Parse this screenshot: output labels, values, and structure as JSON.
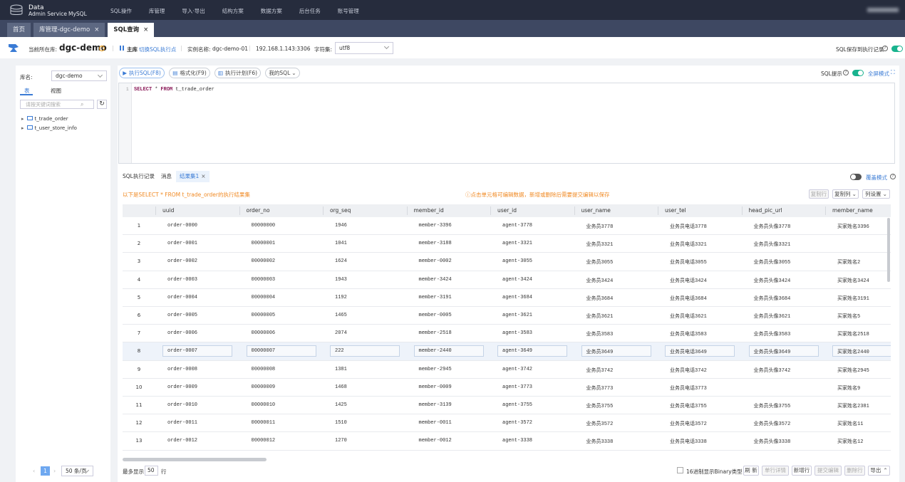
{
  "header": {
    "brand": "Data",
    "brand_sub": "Admin Service",
    "db_type": "MySQL",
    "nav": [
      "SQL操作",
      "库管理",
      "导入·导出",
      "结构方案",
      "数据方案",
      "后台任务",
      "账号管理"
    ]
  },
  "tabs": [
    {
      "label": "首页"
    },
    {
      "label": "库管理-dgc-demo"
    },
    {
      "label": "SQL查询",
      "active": true
    }
  ],
  "infobar": {
    "current_db_label": "当前所在库:",
    "current_db": "dgc-demo",
    "role": "主库",
    "switch_link": "切换SQL执行点",
    "instance_label": "实例名称:",
    "instance": "dgc-demo-01",
    "host": "192.168.1.143:3306",
    "charset_label": "字符集:",
    "charset": "utf8",
    "save_history_label": "SQL保存到执行记录"
  },
  "sidebar": {
    "db_label": "库名:",
    "db": "dgc-demo",
    "tabs": [
      "表",
      "视图"
    ],
    "search_placeholder": "请按关键词搜索",
    "tables": [
      "t_trade_order",
      "t_user_store_info"
    ],
    "page": "1",
    "page_size": "50 条/页"
  },
  "toolbar": {
    "buttons": [
      "执行SQL(F8)",
      "格式化(F9)",
      "执行计划(F6)",
      "我的SQL"
    ],
    "sql_hint": "SQL提示",
    "fullscreen": "全屏模式"
  },
  "editor": {
    "line": "1",
    "tokens": [
      {
        "text": "SELECT",
        "keyword": true
      },
      {
        "text": "*"
      },
      {
        "text": "FROM",
        "keyword": true
      },
      {
        "text": "t_trade_order"
      }
    ]
  },
  "result": {
    "tabs": [
      "SQL执行记录",
      "消息",
      "结果集1"
    ],
    "overwrite_mode": "覆盖模式",
    "summary": "以下是SELECT * FROM t_trade_order的执行结果集",
    "notice": "点击单元格可编辑数据，新增或删除后需要提交编辑以保存",
    "actions": [
      {
        "label": "复制行",
        "disabled": true
      },
      {
        "label": "复制列"
      },
      {
        "label": "列设置"
      }
    ]
  },
  "table": {
    "columns": [
      "uuid",
      "order_no",
      "org_seq",
      "member_id",
      "user_id",
      "user_name",
      "user_tel",
      "head_pic_url",
      "member_name"
    ],
    "selected_row": 7,
    "rows": [
      {
        "no": "1",
        "cells": [
          "order-0000",
          "00000000",
          "1946",
          "member-3396",
          "agent-3778",
          "业务员3778",
          "业务员电话3778",
          "业务员头像3778",
          "买家姓名3396"
        ]
      },
      {
        "no": "2",
        "cells": [
          "order-0001",
          "00000001",
          "1041",
          "member-3188",
          "agent-3321",
          "业务员3321",
          "业务员电话3321",
          "业务员头像3321",
          null
        ]
      },
      {
        "no": "3",
        "cells": [
          "order-0002",
          "00000002",
          "1624",
          "member-0002",
          "agent-3055",
          "业务员3055",
          "业务员电话3055",
          "业务员头像3055",
          "买家姓名2"
        ]
      },
      {
        "no": "4",
        "cells": [
          "order-0003",
          "00000003",
          "1943",
          "member-3424",
          "agent-3424",
          "业务员3424",
          "业务员电话3424",
          "业务员头像3424",
          "买家姓名3424"
        ]
      },
      {
        "no": "5",
        "cells": [
          "order-0004",
          "00000004",
          "1192",
          "member-3191",
          "agent-3684",
          "业务员3684",
          "业务员电话3684",
          "业务员头像3684",
          "买家姓名3191"
        ]
      },
      {
        "no": "6",
        "cells": [
          "order-0005",
          "00000005",
          "1465",
          "member-0005",
          "agent-3621",
          "业务员3621",
          "业务员电话3621",
          "业务员头像3621",
          "买家姓名5"
        ]
      },
      {
        "no": "7",
        "cells": [
          "order-0006",
          "00000006",
          "2074",
          "member-2518",
          "agent-3583",
          "业务员3583",
          "业务员电话3583",
          "业务员头像3583",
          "买家姓名2518"
        ]
      },
      {
        "no": "8",
        "cells": [
          "order-0007",
          "00000007",
          "222",
          "member-2440",
          "agent-3649",
          "业务员3649",
          "业务员电话3649",
          "业务员头像3649",
          "买家姓名2440"
        ]
      },
      {
        "no": "9",
        "cells": [
          "order-0008",
          "00000008",
          "1381",
          "member-2945",
          "agent-3742",
          "业务员3742",
          "业务员电话3742",
          "业务员头像3742",
          "买家姓名2945"
        ]
      },
      {
        "no": "10",
        "cells": [
          "order-0009",
          "00000009",
          "1468",
          "member-0009",
          "agent-3773",
          "业务员3773",
          "业务员电话3773",
          null,
          "买家姓名9"
        ]
      },
      {
        "no": "11",
        "cells": [
          "order-0010",
          "00000010",
          "1425",
          "member-3139",
          "agent-3755",
          "业务员3755",
          "业务员电话3755",
          "业务员头像3755",
          "买家姓名2381"
        ]
      },
      {
        "no": "12",
        "cells": [
          "order-0011",
          "00000011",
          "1510",
          "member-0011",
          "agent-3572",
          "业务员3572",
          "业务员电话3572",
          "业务员头像3572",
          "买家姓名11"
        ]
      },
      {
        "no": "13",
        "cells": [
          "order-0012",
          "00000012",
          "1270",
          "member-0012",
          "agent-3338",
          "业务员3338",
          "业务员电话3338",
          "业务员头像3338",
          "买家姓名12"
        ]
      }
    ]
  },
  "footer": {
    "max_label": "最多显示",
    "max_rows": "50",
    "rows_unit": "行",
    "binary_label": "16进制显示Binary类型",
    "buttons": [
      {
        "label": "刷 新"
      },
      {
        "label": "单行详情",
        "disabled": true
      },
      {
        "label": "新增行"
      },
      {
        "label": "提交编辑",
        "disabled": true
      },
      {
        "label": "删除行",
        "disabled": true
      },
      {
        "label": "导出"
      }
    ]
  }
}
